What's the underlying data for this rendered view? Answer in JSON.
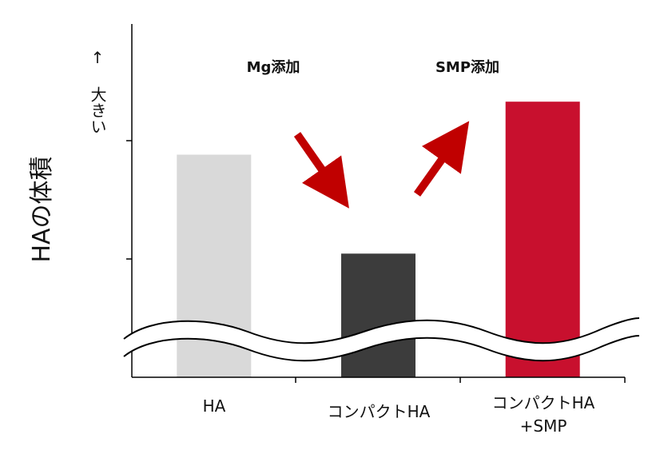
{
  "chart_data": {
    "type": "bar",
    "title": "",
    "xlabel": "",
    "ylabel": "HAの体積",
    "ylabel_note": "↑ 大きい",
    "categories": [
      {
        "line1": "HA",
        "line2": ""
      },
      {
        "line1": "コンパクトHA",
        "line2": ""
      },
      {
        "line1": "コンパクトHA",
        "line2": "+SMP"
      }
    ],
    "values": [
      0.63,
      0.35,
      0.78
    ],
    "bar_colors": [
      "#d9d9d9",
      "#3c3c3c",
      "#c8102e"
    ],
    "axis_broken": true,
    "grid": false,
    "legend": "none",
    "annotations": [
      {
        "text": "Mg添加",
        "arrow": "down-right",
        "from": "HA",
        "to": "コンパクトHA"
      },
      {
        "text": "SMP添加",
        "arrow": "up-right",
        "from": "コンパクトHA",
        "to": "コンパクトHA+SMP"
      }
    ],
    "arrow_color": "#c00000"
  }
}
